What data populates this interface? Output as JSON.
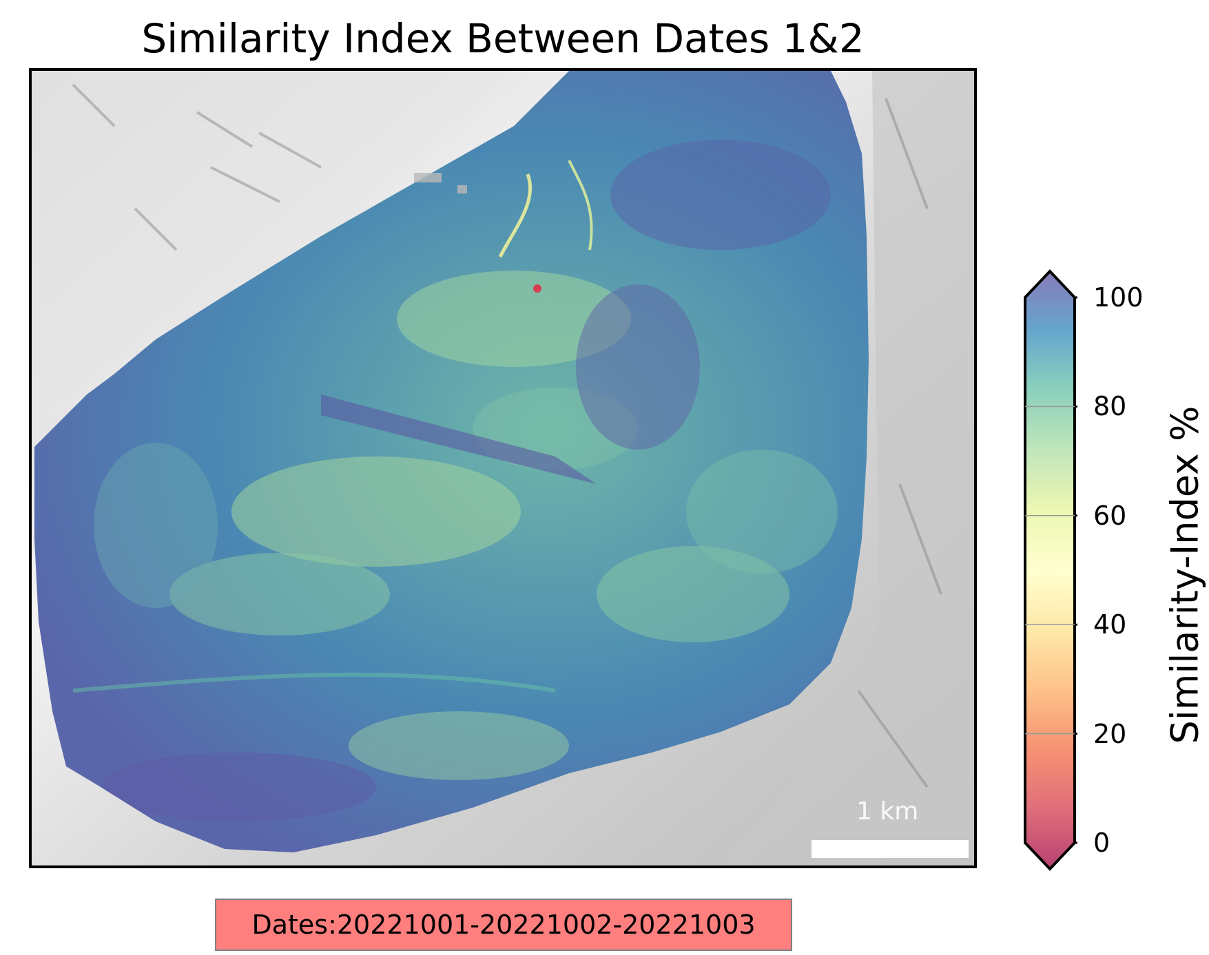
{
  "title": "Similarity Index Between Dates 1&2",
  "scale_bar": {
    "label": "1 km"
  },
  "colorbar": {
    "label": "Similarity-Index %",
    "ticks": [
      "0",
      "20",
      "40",
      "60",
      "80",
      "100"
    ],
    "range": [
      0,
      100
    ],
    "colormap": "Spectral",
    "extend": "both",
    "colors": [
      "#9e0142",
      "#d53e4f",
      "#f46d43",
      "#fdae61",
      "#fee08b",
      "#ffffbf",
      "#e6f598",
      "#abdda4",
      "#66c2a5",
      "#3288bd",
      "#5e4fa2"
    ]
  },
  "dates_label": "Dates:20221001-20221002-20221003",
  "basemap": {
    "type": "hillshade",
    "color": "#d9d9d9"
  }
}
